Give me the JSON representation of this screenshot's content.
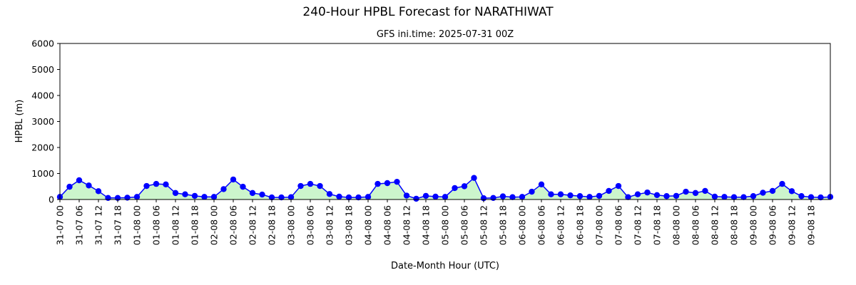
{
  "chart_data": {
    "type": "line",
    "title": "240-Hour HPBL Forecast for NARATHIWAT",
    "subtitle": "GFS ini.time: 2025-07-31 00Z",
    "xlabel": "Date-Month Hour (UTC)",
    "ylabel": "HPBL (m)",
    "ylim": [
      0,
      6000
    ],
    "yticks": [
      0,
      1000,
      2000,
      3000,
      4000,
      5000,
      6000
    ],
    "xticks": [
      "31-07 00",
      "31-07 06",
      "31-07 12",
      "31-07 18",
      "01-08 00",
      "01-08 06",
      "01-08 12",
      "01-08 18",
      "02-08 00",
      "02-08 06",
      "02-08 12",
      "02-08 18",
      "03-08 00",
      "03-08 06",
      "03-08 12",
      "03-08 18",
      "04-08 00",
      "04-08 06",
      "04-08 12",
      "04-08 18",
      "05-08 00",
      "05-08 06",
      "05-08 12",
      "05-08 18",
      "06-08 00",
      "06-08 06",
      "06-08 12",
      "06-08 18",
      "07-08 00",
      "07-08 06",
      "07-08 12",
      "07-08 18",
      "08-08 00",
      "08-08 06",
      "08-08 12",
      "08-08 18",
      "09-08 00",
      "09-08 06",
      "09-08 12",
      "09-08 18"
    ],
    "x_step_hours": 3,
    "grid": false,
    "line_color": "#0000ff",
    "marker_color": "#0000ff",
    "fill_color": "#ccf5cc",
    "series": [
      {
        "values": [
          100,
          490,
          740,
          540,
          320,
          60,
          60,
          70,
          100,
          520,
          600,
          580,
          250,
          200,
          140,
          100,
          100,
          400,
          770,
          490,
          250,
          190,
          80,
          80,
          90,
          520,
          600,
          520,
          210,
          110,
          80,
          80,
          100,
          600,
          630,
          680,
          150,
          30,
          140,
          110,
          100,
          440,
          510,
          830,
          50,
          60,
          120,
          90,
          100,
          300,
          580,
          200,
          200,
          160,
          130,
          100,
          140,
          330,
          520,
          90,
          200,
          270,
          170,
          130,
          140,
          300,
          250,
          330,
          110,
          100,
          90,
          90,
          130,
          260,
          330,
          600,
          320,
          130,
          90,
          80,
          100
        ]
      }
    ]
  }
}
